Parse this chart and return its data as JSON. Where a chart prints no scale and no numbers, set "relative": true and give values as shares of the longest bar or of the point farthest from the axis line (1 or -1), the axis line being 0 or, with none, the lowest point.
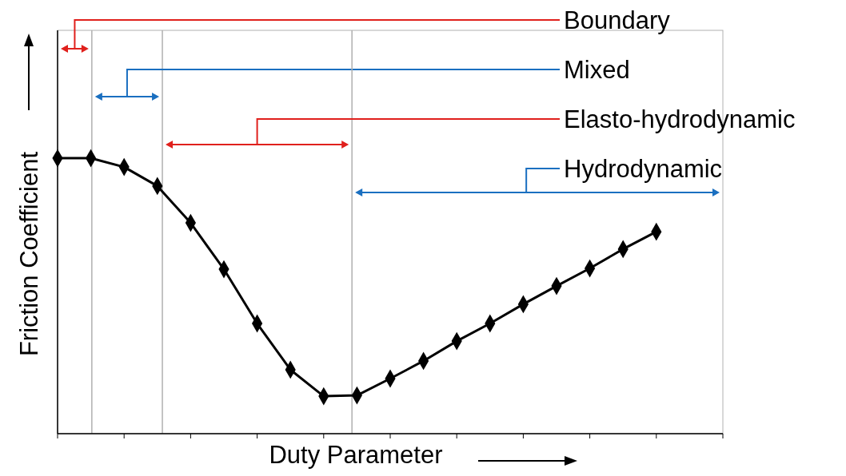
{
  "chart_data": {
    "type": "line",
    "xlabel": "Duty Parameter",
    "ylabel": "Friction Coefficient",
    "relative": true,
    "marker": "diamond",
    "line_style": "solid",
    "categories": [
      null,
      null,
      null,
      null,
      null,
      null,
      null,
      null,
      null,
      null,
      null,
      null,
      null,
      null,
      null,
      null,
      null,
      null,
      null
    ],
    "series": [
      {
        "color": "#000000",
        "values": [
          1,
          1,
          0.968,
          0.899,
          0.765,
          0.597,
          0.4,
          0.232,
          0.136,
          0.139,
          0.2,
          0.264,
          0.336,
          0.4,
          0.47,
          0.536,
          0.6,
          0.67,
          0.733
        ]
      }
    ],
    "annotations": [
      "Boundary",
      "Mixed",
      "Elasto-hydrodynamic",
      "Hydrodynamic"
    ]
  }
}
